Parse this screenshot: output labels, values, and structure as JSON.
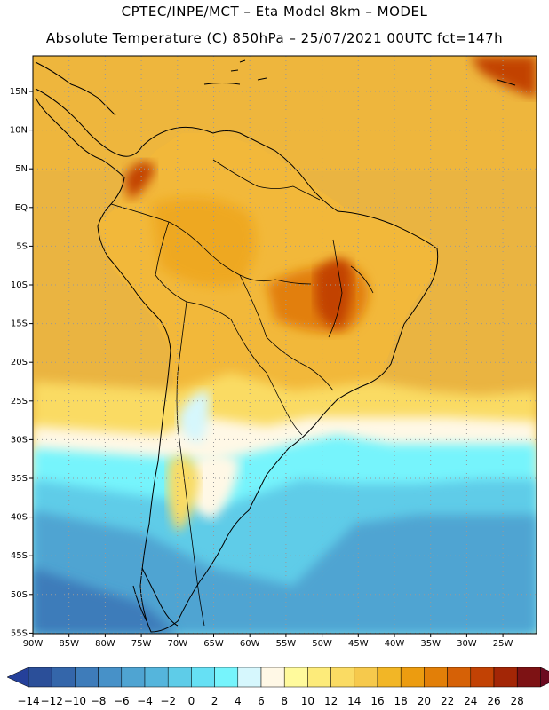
{
  "title_line1": "CPTEC/INPE/MCT –  Eta Model 8km – MODEL",
  "title_line2": "Absolute Temperature (C) 850hPa – 25/07/2021 00UTC fct=147h",
  "lat_labels": [
    "15N",
    "10N",
    "5N",
    "EQ",
    "5S",
    "10S",
    "15S",
    "20S",
    "25S",
    "30S",
    "35S",
    "40S",
    "45S",
    "50S",
    "55S"
  ],
  "lon_labels": [
    "90W",
    "85W",
    "80W",
    "75W",
    "70W",
    "65W",
    "60W",
    "55W",
    "50W",
    "45W",
    "40W",
    "35W",
    "30W",
    "25W"
  ],
  "colorbar": {
    "labels": [
      "-14",
      "-12",
      "-10",
      "-8",
      "-6",
      "-4",
      "-2",
      "0",
      "2",
      "4",
      "6",
      "8",
      "10",
      "12",
      "14",
      "16",
      "18",
      "20",
      "22",
      "24",
      "26",
      "28"
    ],
    "colors": [
      "#2b4f99",
      "#3466aa",
      "#3e7cba",
      "#4791c8",
      "#4fa4d2",
      "#55b5dc",
      "#5ecce8",
      "#66e0f4",
      "#76f4fc",
      "#d6f7fd",
      "#fff8e6",
      "#fffa9c",
      "#fdeb7a",
      "#fadb63",
      "#f6c94c",
      "#f2b626",
      "#ec9c10",
      "#e27f08",
      "#d66106",
      "#c24204",
      "#a32606",
      "#7d1214"
    ],
    "low_color": "#25409a",
    "high_color": "#6b0a20"
  },
  "map": {
    "ocean_color": "#eab441",
    "land_color": "#f2b83a",
    "cold_shallow_color": "#76f4fc",
    "cold_deep_color": "#4fa4d2"
  }
}
